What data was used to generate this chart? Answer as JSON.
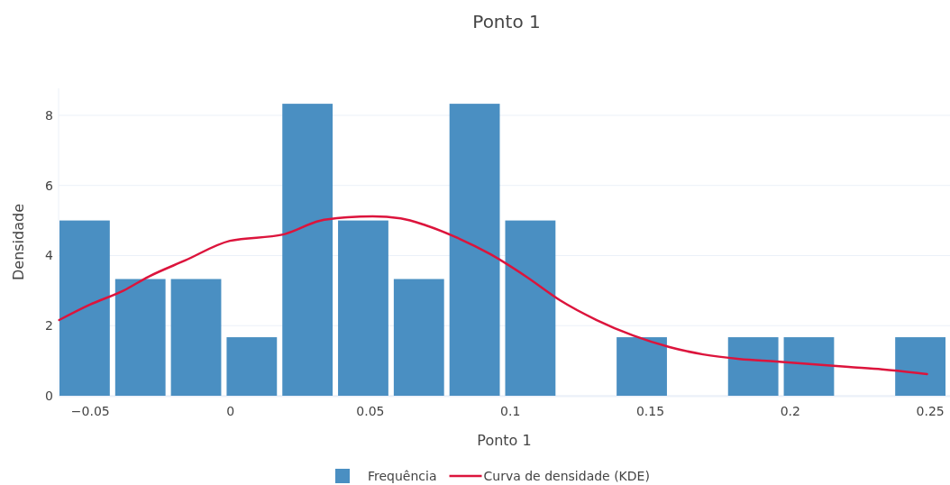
{
  "chart_data": {
    "type": "histogram",
    "title": "Ponto 1",
    "xlabel": "Ponto 1",
    "ylabel": "Densidade",
    "xlim": [
      -0.0612,
      0.2572
    ],
    "xticks": [
      {
        "value": -0.05,
        "label": "−0.05"
      },
      0,
      0.05,
      0.1,
      0.15,
      0.2,
      0.25
    ],
    "ylim": [
      0,
      8.77
    ],
    "yticks": [
      0,
      2,
      4,
      6,
      8
    ],
    "grid": "y",
    "legend": "bottom",
    "bins": [
      -0.0612,
      -0.0413,
      -0.0214,
      -0.0015,
      0.0184,
      0.0383,
      0.0582,
      0.0781,
      0.098,
      0.1179,
      0.1378,
      0.1577,
      0.1776,
      0.1975,
      0.2174,
      0.2373,
      0.2572
    ],
    "series": [
      {
        "name": "Frequência",
        "color": "#4a8fc2",
        "values": [
          5,
          3.33,
          3.33,
          1.67,
          8.33,
          5,
          3.33,
          8.33,
          5,
          0,
          1.67,
          0,
          1.67,
          1.67,
          0,
          1.67
        ]
      },
      {
        "name": "Curva de densidade (KDE)",
        "type": "line",
        "color": "#dc143c",
        "x": [
          -0.061,
          -0.05,
          -0.038,
          -0.029,
          -0.016,
          0,
          0.019,
          0.032,
          0.042,
          0.051,
          0.061,
          0.07,
          0.08,
          0.093,
          0.106,
          0.118,
          0.131,
          0.144,
          0.157,
          0.169,
          0.182,
          0.195,
          0.208,
          0.221,
          0.233,
          0.249
        ],
        "values": [
          2.16,
          2.6,
          3.0,
          3.4,
          3.86,
          4.42,
          4.6,
          4.99,
          5.09,
          5.12,
          5.06,
          4.86,
          4.55,
          4.04,
          3.39,
          2.72,
          2.16,
          1.72,
          1.39,
          1.18,
          1.05,
          0.98,
          0.9,
          0.82,
          0.75,
          0.62
        ]
      }
    ]
  }
}
